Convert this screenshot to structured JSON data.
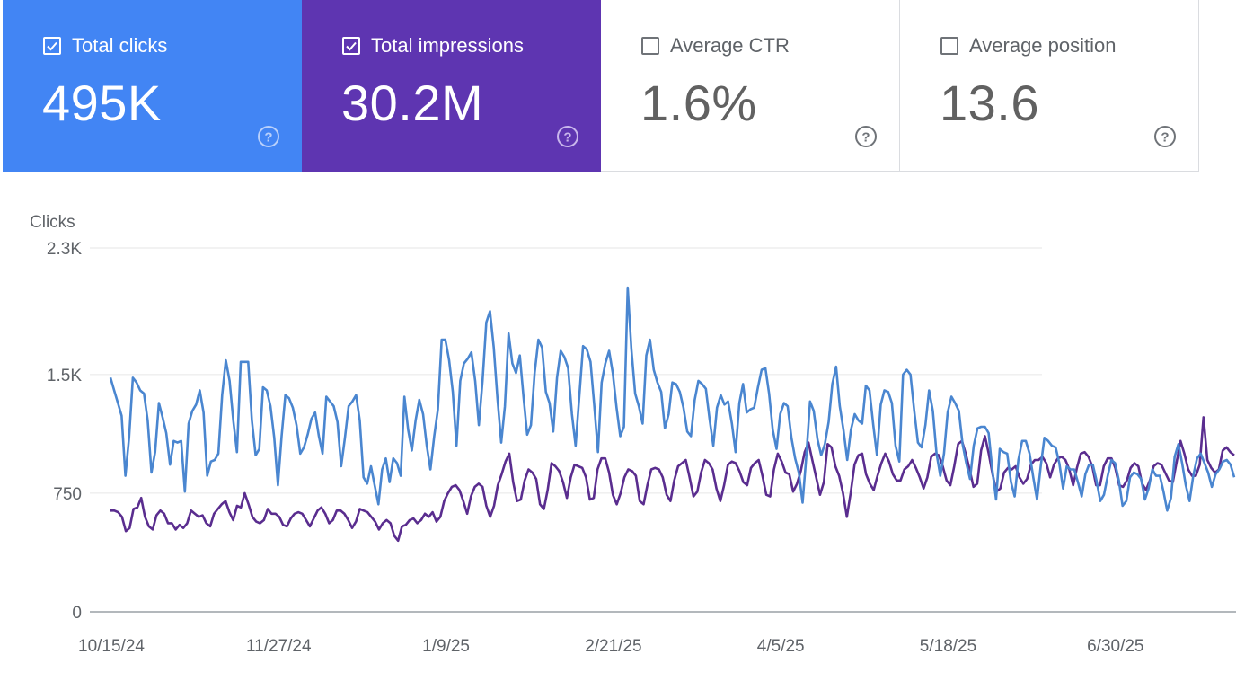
{
  "metrics": [
    {
      "label": "Total clicks",
      "value": "495K",
      "checked": true
    },
    {
      "label": "Total impressions",
      "value": "30.2M",
      "checked": true
    },
    {
      "label": "Average CTR",
      "value": "1.6%",
      "checked": false
    },
    {
      "label": "Average position",
      "value": "13.6",
      "checked": false
    }
  ],
  "colors": {
    "clicks": "#4285f4",
    "impressions": "#5e35b1",
    "clicks_line": "#4a86d0",
    "impressions_line": "#5a2d8f",
    "grid": "#e6e6e6",
    "axis": "#9aa0a6"
  },
  "icons": {
    "checkbox": "check-icon",
    "help": "help-circle-icon"
  },
  "chart_data": {
    "type": "line",
    "ylabel": "Clicks",
    "ylim": [
      0,
      2300
    ],
    "y_ticks": [
      0,
      750,
      1500,
      2300
    ],
    "y_tick_labels": [
      "0",
      "750",
      "1.5K",
      "2.3K"
    ],
    "x_range": [
      "10/15/24",
      "7/31/25"
    ],
    "x_ticks": [
      "10/15/24",
      "11/27/24",
      "1/9/25",
      "2/21/25",
      "4/5/25",
      "5/18/25",
      "6/30/25"
    ],
    "grid": true,
    "series": [
      {
        "name": "Total clicks",
        "color": "#4a86d0",
        "values": [
          1480,
          1400,
          1320,
          1240,
          860,
          1100,
          1480,
          1450,
          1400,
          1380,
          1210,
          880,
          1010,
          1320,
          1230,
          1130,
          930,
          1080,
          1070,
          1080,
          760,
          1190,
          1270,
          1310,
          1400,
          1260,
          860,
          950,
          960,
          1000,
          1370,
          1590,
          1460,
          1210,
          1010,
          1580,
          1580,
          1580,
          1210,
          990,
          1030,
          1420,
          1400,
          1300,
          1100,
          800,
          1110,
          1370,
          1350,
          1290,
          1180,
          1000,
          1040,
          1120,
          1220,
          1260,
          1110,
          1000,
          1360,
          1330,
          1300,
          1200,
          920,
          1100,
          1300,
          1330,
          1370,
          1210,
          850,
          810,
          920,
          800,
          680,
          900,
          970,
          820,
          970,
          940,
          860,
          1360,
          1150,
          1020,
          1210,
          1340,
          1250,
          1050,
          900,
          1110,
          1280,
          1720,
          1720,
          1590,
          1390,
          1050,
          1460,
          1570,
          1600,
          1640,
          1460,
          1180,
          1460,
          1830,
          1900,
          1670,
          1350,
          1070,
          1300,
          1760,
          1570,
          1510,
          1620,
          1360,
          1120,
          1180,
          1510,
          1720,
          1670,
          1390,
          1320,
          1140,
          1480,
          1650,
          1610,
          1540,
          1250,
          1050,
          1360,
          1680,
          1660,
          1580,
          1310,
          1010,
          1450,
          1570,
          1650,
          1510,
          1290,
          1110,
          1170,
          2050,
          1660,
          1380,
          1300,
          1190,
          1620,
          1720,
          1530,
          1450,
          1390,
          1160,
          1250,
          1450,
          1440,
          1390,
          1290,
          1140,
          1110,
          1340,
          1460,
          1440,
          1410,
          1220,
          1050,
          1290,
          1370,
          1310,
          1330,
          1190,
          1010,
          1320,
          1440,
          1260,
          1280,
          1290,
          1420,
          1530,
          1540,
          1380,
          1150,
          1030,
          1250,
          1320,
          1300,
          1100,
          970,
          880,
          690,
          980,
          1330,
          1270,
          1090,
          990,
          1060,
          1200,
          1440,
          1550,
          1300,
          1150,
          960,
          1150,
          1250,
          1210,
          1190,
          1430,
          1400,
          1180,
          990,
          1310,
          1400,
          1390,
          1320,
          1050,
          950,
          1500,
          1530,
          1500,
          1270,
          1070,
          1040,
          1180,
          1400,
          1270,
          1000,
          860,
          1000,
          1260,
          1360,
          1320,
          1270,
          1060,
          940,
          840,
          1050,
          1160,
          1170,
          1170,
          1130,
          900,
          710,
          1030,
          1010,
          1000,
          820,
          730,
          960,
          1080,
          1080,
          1000,
          850,
          710,
          920,
          1100,
          1080,
          1050,
          1040,
          940,
          780,
          920,
          900,
          900,
          820,
          730,
          870,
          930,
          930,
          830,
          700,
          740,
          860,
          960,
          940,
          830,
          670,
          700,
          850,
          880,
          870,
          840,
          710,
          780,
          900,
          860,
          860,
          760,
          640,
          720,
          980,
          1060,
          940,
          800,
          700,
          860,
          970,
          1000,
          940,
          880,
          790,
          870,
          900,
          950,
          960,
          930,
          850
        ]
      },
      {
        "name": "Total impressions",
        "color": "#5a2d8f",
        "values": [
          640,
          640,
          630,
          600,
          510,
          530,
          650,
          660,
          720,
          600,
          540,
          520,
          610,
          640,
          620,
          560,
          560,
          520,
          550,
          530,
          560,
          640,
          620,
          600,
          610,
          560,
          540,
          620,
          650,
          680,
          700,
          630,
          580,
          670,
          660,
          750,
          680,
          600,
          570,
          560,
          580,
          650,
          620,
          620,
          600,
          550,
          540,
          590,
          620,
          630,
          620,
          580,
          540,
          590,
          640,
          660,
          620,
          560,
          580,
          640,
          640,
          620,
          580,
          530,
          570,
          650,
          640,
          630,
          600,
          570,
          520,
          560,
          580,
          560,
          480,
          450,
          540,
          550,
          580,
          590,
          560,
          580,
          620,
          600,
          630,
          570,
          600,
          700,
          750,
          790,
          800,
          770,
          700,
          620,
          730,
          790,
          810,
          790,
          670,
          600,
          670,
          800,
          870,
          950,
          1000,
          820,
          700,
          710,
          830,
          900,
          880,
          840,
          680,
          650,
          770,
          940,
          920,
          890,
          820,
          720,
          850,
          930,
          920,
          910,
          850,
          710,
          720,
          900,
          970,
          970,
          880,
          740,
          680,
          750,
          850,
          900,
          890,
          860,
          700,
          680,
          800,
          900,
          910,
          900,
          850,
          740,
          700,
          830,
          920,
          940,
          960,
          850,
          730,
          760,
          880,
          960,
          940,
          900,
          780,
          700,
          800,
          930,
          950,
          940,
          890,
          820,
          800,
          910,
          940,
          960,
          860,
          740,
          730,
          900,
          1000,
          950,
          880,
          870,
          760,
          810,
          890,
          1010,
          1070,
          960,
          850,
          740,
          820,
          1060,
          1040,
          920,
          860,
          750,
          600,
          750,
          930,
          990,
          1000,
          870,
          810,
          770,
          860,
          940,
          1000,
          950,
          870,
          830,
          830,
          900,
          920,
          960,
          910,
          850,
          780,
          850,
          980,
          1000,
          990,
          920,
          830,
          800,
          920,
          1060,
          1080,
          1000,
          900,
          790,
          810,
          1020,
          1110,
          1000,
          870,
          760,
          780,
          880,
          910,
          900,
          920,
          850,
          810,
          840,
          930,
          960,
          960,
          980,
          940,
          850,
          930,
          970,
          980,
          960,
          900,
          800,
          910,
          1000,
          1010,
          980,
          920,
          800,
          800,
          920,
          970,
          970,
          910,
          800,
          790,
          830,
          910,
          940,
          920,
          810,
          770,
          830,
          920,
          940,
          930,
          880,
          830,
          820,
          950,
          1080,
          1000,
          900,
          860,
          860,
          930,
          1230,
          960,
          910,
          880,
          900,
          1020,
          1040,
          1010,
          990
        ]
      }
    ]
  }
}
